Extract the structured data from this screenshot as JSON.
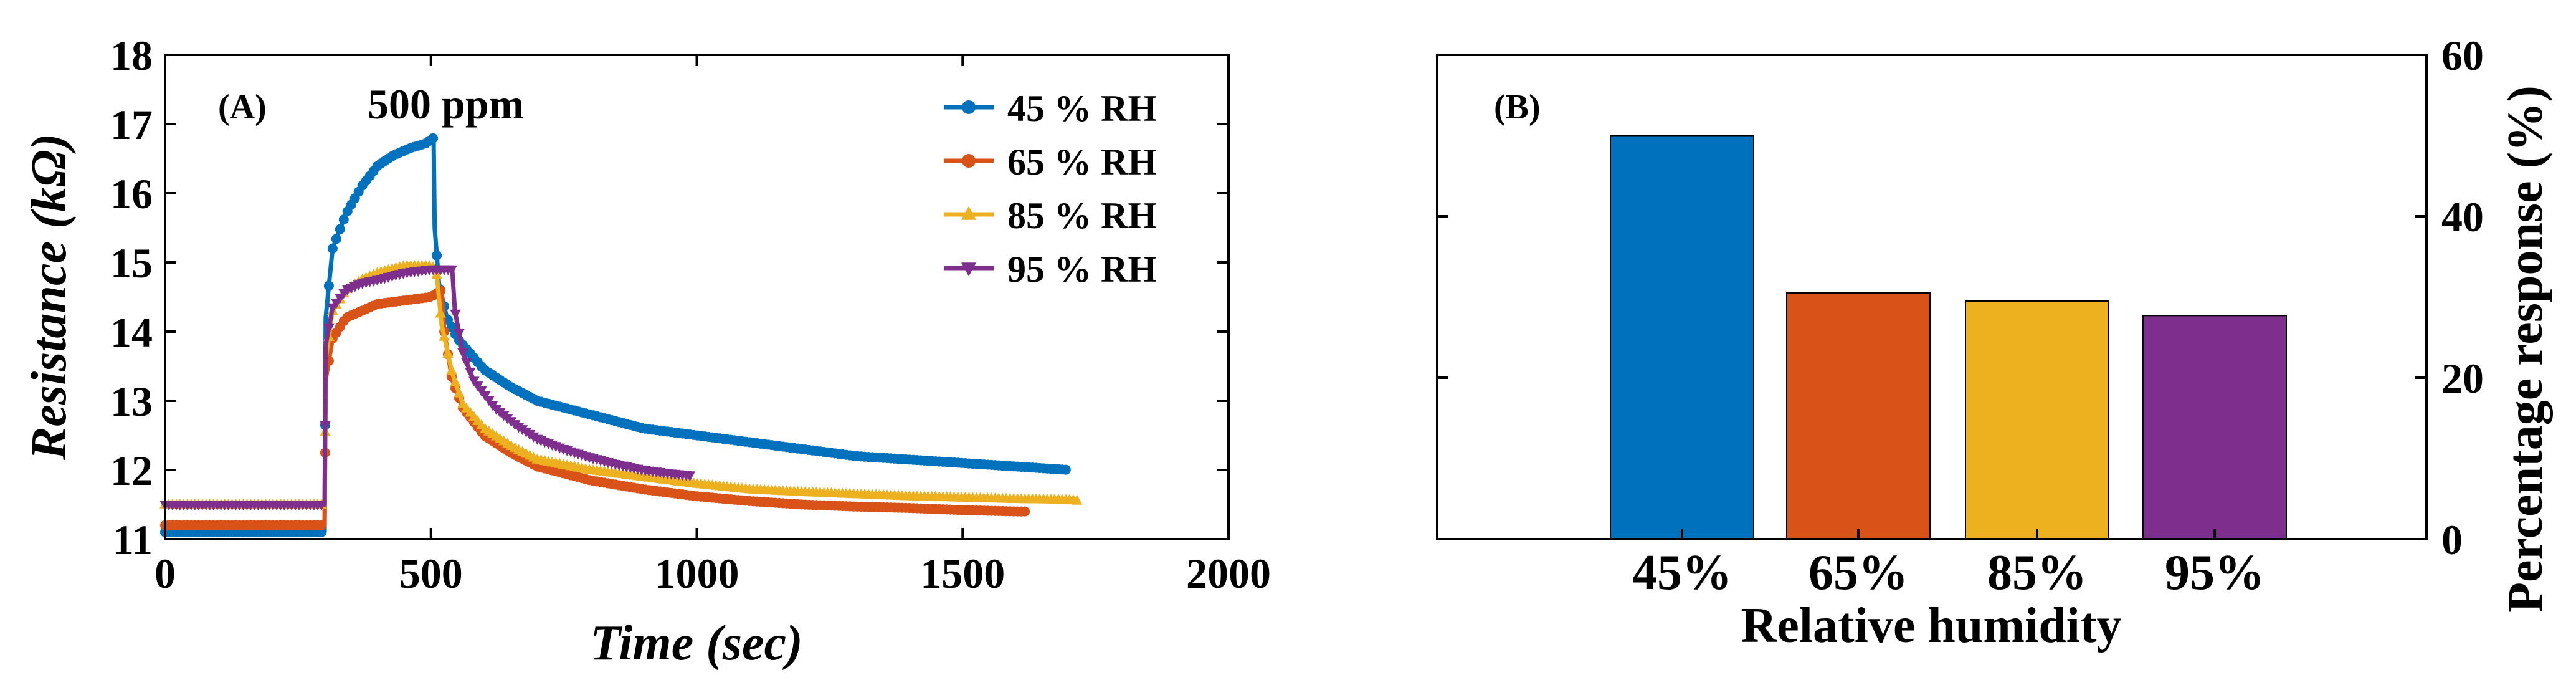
{
  "chart_data": [
    {
      "type": "line",
      "panel_label": "(A)",
      "annotation": "500 ppm",
      "xlabel": "Time (sec)",
      "ylabel": "Resistance (kΩ)",
      "xlim": [
        0,
        2000
      ],
      "ylim": [
        11,
        18
      ],
      "xticks": [
        "0",
        "500",
        "1000",
        "1500",
        "2000"
      ],
      "yticks": [
        "11",
        "12",
        "13",
        "14",
        "15",
        "16",
        "17",
        "18"
      ],
      "grid": false,
      "legend": "top-right",
      "series": [
        {
          "name": "45 % RH",
          "color": "#0072bd",
          "marker": "circle",
          "x": [
            0,
            300,
            302,
            315,
            340,
            370,
            400,
            430,
            460,
            490,
            505,
            507,
            515,
            530,
            550,
            600,
            650,
            700,
            800,
            900,
            1000,
            1100,
            1200,
            1300,
            1400,
            1500,
            1600,
            1700
          ],
          "y": [
            11.1,
            11.1,
            14.2,
            15.2,
            15.7,
            16.1,
            16.4,
            16.55,
            16.65,
            16.72,
            16.8,
            15.5,
            14.7,
            14.2,
            13.9,
            13.45,
            13.2,
            13.0,
            12.8,
            12.6,
            12.5,
            12.4,
            12.3,
            12.2,
            12.15,
            12.1,
            12.05,
            12.0
          ]
        },
        {
          "name": "65 % RH",
          "color": "#d95319",
          "marker": "circle",
          "x": [
            0,
            300,
            302,
            315,
            340,
            370,
            400,
            450,
            500,
            520,
            525,
            540,
            560,
            600,
            650,
            700,
            800,
            900,
            1000,
            1100,
            1200,
            1300,
            1400,
            1500,
            1600,
            1620
          ],
          "y": [
            11.2,
            11.2,
            13.3,
            13.9,
            14.2,
            14.3,
            14.4,
            14.45,
            14.5,
            14.6,
            14.0,
            13.3,
            12.9,
            12.5,
            12.25,
            12.05,
            11.85,
            11.72,
            11.62,
            11.55,
            11.5,
            11.47,
            11.45,
            11.42,
            11.4,
            11.4
          ]
        },
        {
          "name": "85 % RH",
          "color": "#edb120",
          "marker": "triangle-up",
          "x": [
            0,
            300,
            302,
            315,
            340,
            370,
            400,
            450,
            500,
            510,
            520,
            540,
            560,
            600,
            650,
            700,
            800,
            900,
            1000,
            1100,
            1200,
            1300,
            1400,
            1500,
            1600,
            1700,
            1720
          ],
          "y": [
            11.5,
            11.5,
            13.6,
            14.3,
            14.6,
            14.75,
            14.85,
            14.95,
            14.95,
            14.9,
            14.1,
            13.4,
            12.95,
            12.6,
            12.35,
            12.15,
            12.0,
            11.9,
            11.8,
            11.72,
            11.68,
            11.65,
            11.62,
            11.6,
            11.58,
            11.57,
            11.55
          ]
        },
        {
          "name": "95 % RH",
          "color": "#7e2f8e",
          "marker": "triangle-down",
          "x": [
            0,
            300,
            302,
            315,
            340,
            370,
            400,
            450,
            500,
            540,
            545,
            560,
            580,
            620,
            660,
            700,
            750,
            800,
            850,
            900,
            950,
            990
          ],
          "y": [
            11.5,
            11.5,
            13.8,
            14.35,
            14.6,
            14.7,
            14.75,
            14.85,
            14.9,
            14.9,
            14.3,
            13.7,
            13.3,
            12.9,
            12.65,
            12.45,
            12.3,
            12.18,
            12.08,
            12.0,
            11.95,
            11.92
          ]
        }
      ]
    },
    {
      "type": "bar",
      "panel_label": "(B)",
      "xlabel": "Relative humidity",
      "ylabel": "Percentage response (%)",
      "categories": [
        "45%",
        "65%",
        "85%",
        "95%"
      ],
      "values": [
        50,
        30.5,
        29.5,
        27.7
      ],
      "colors": [
        "#0072bd",
        "#d95319",
        "#edb120",
        "#7e2f8e"
      ],
      "ylim": [
        0,
        60
      ],
      "yticks": [
        "0",
        "20",
        "40",
        "60"
      ],
      "y_axis_side": "right",
      "grid": false
    }
  ]
}
